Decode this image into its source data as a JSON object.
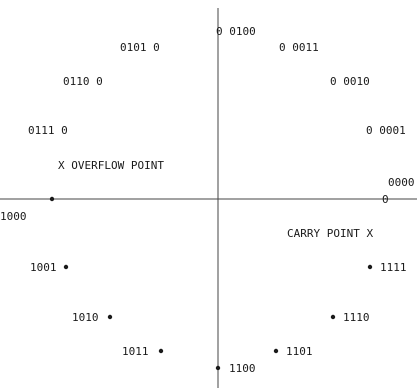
{
  "axes": {
    "color": "#444444"
  },
  "points": [
    {
      "id": "p0100",
      "label": "0 0100",
      "marker": "open"
    },
    {
      "id": "p0011",
      "label": "0 0011",
      "marker": "open"
    },
    {
      "id": "p0010",
      "label": "0 0010",
      "marker": "open"
    },
    {
      "id": "p0001",
      "label": "0 0001",
      "marker": "open"
    },
    {
      "id": "p0000",
      "label": "0000",
      "marker": "open"
    },
    {
      "id": "p0101",
      "label": "0101 0",
      "marker": "open"
    },
    {
      "id": "p0110",
      "label": "0110 0",
      "marker": "open"
    },
    {
      "id": "p0111",
      "label": "0111 0",
      "marker": "open"
    },
    {
      "id": "p1000",
      "label": "1000",
      "marker": "filled"
    },
    {
      "id": "p1001",
      "label": "1001",
      "marker": "filled"
    },
    {
      "id": "p1010",
      "label": "1010",
      "marker": "filled"
    },
    {
      "id": "p1011",
      "label": "1011",
      "marker": "filled"
    },
    {
      "id": "p1100",
      "label": "1100",
      "marker": "filled"
    },
    {
      "id": "p1101",
      "label": "1101",
      "marker": "filled"
    },
    {
      "id": "p1110",
      "label": "1110",
      "marker": "filled"
    },
    {
      "id": "p1111",
      "label": "1111",
      "marker": "filled"
    }
  ],
  "annotations": {
    "overflow": "X OVERFLOW POINT",
    "carry": "CARRY POINT X"
  }
}
